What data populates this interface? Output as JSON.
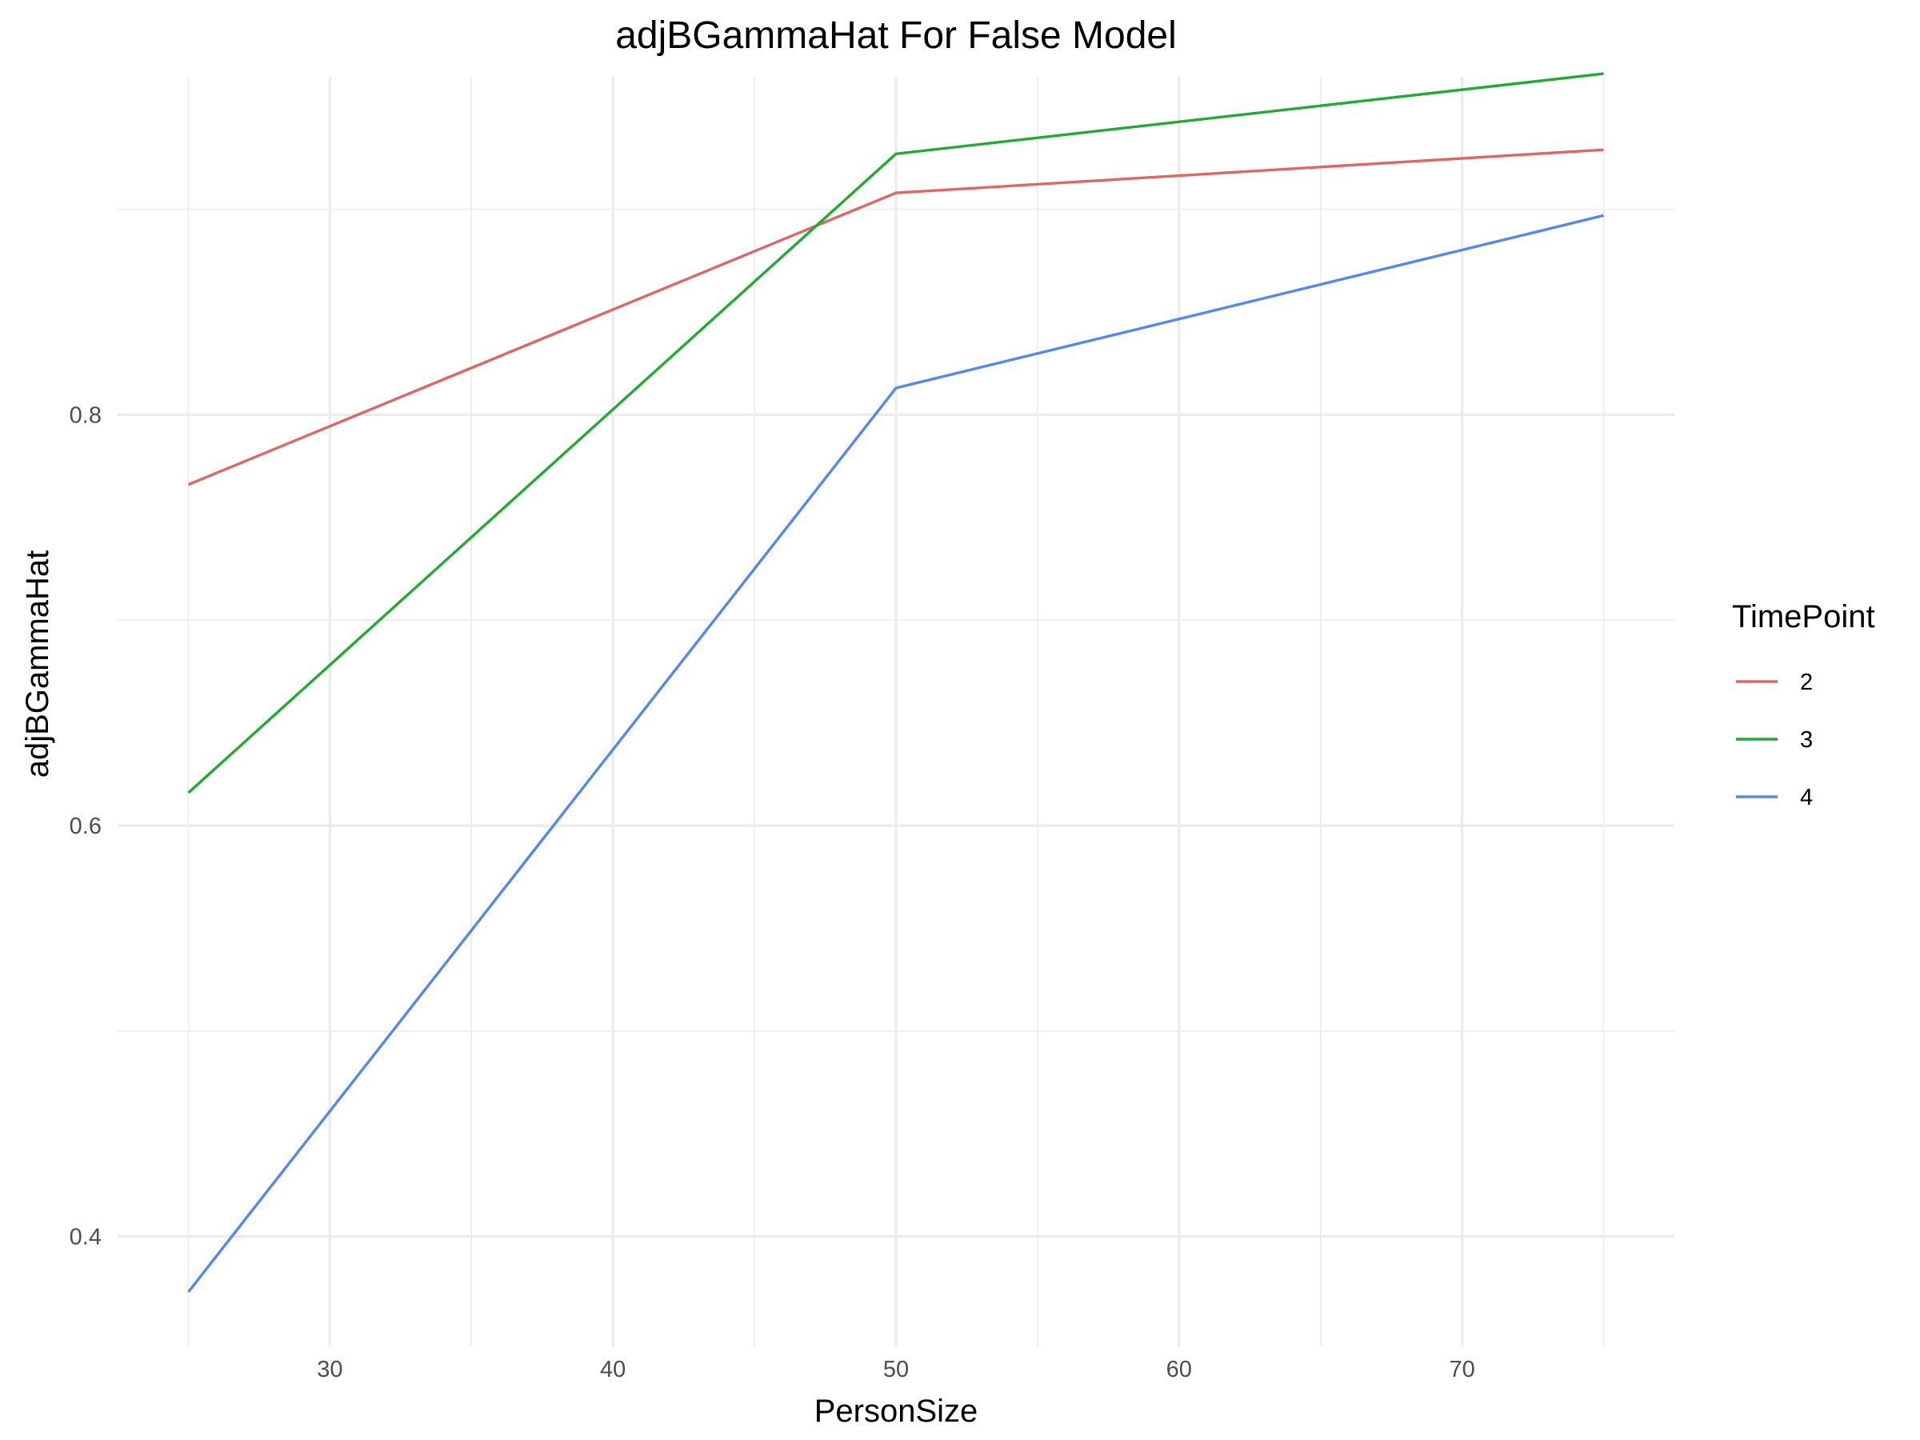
{
  "chart_data": {
    "type": "line",
    "title": "adjBGammaHat For False Model",
    "xlabel": "PersonSize",
    "ylabel": "adjBGammaHat",
    "x": [
      25,
      50,
      75
    ],
    "xlim": [
      22.5,
      77.5
    ],
    "ylim": [
      0.3465,
      0.9645
    ],
    "x_ticks": [
      30,
      40,
      50,
      60,
      70
    ],
    "x_tick_labels": [
      "30",
      "40",
      "50",
      "60",
      "70"
    ],
    "y_ticks": [
      0.4,
      0.6,
      0.8
    ],
    "y_tick_labels": [
      "0.4",
      "0.6",
      "0.8"
    ],
    "grid": true,
    "legend": {
      "title": "TimePoint",
      "position": "right"
    },
    "series": [
      {
        "name": "2",
        "color": "#e06666",
        "values": [
          0.766,
          0.908,
          0.929
        ]
      },
      {
        "name": "3",
        "color": "#22aa33",
        "values": [
          0.616,
          0.927,
          0.966
        ]
      },
      {
        "name": "4",
        "color": "#5588ee",
        "values": [
          0.373,
          0.813,
          0.897
        ]
      }
    ]
  }
}
